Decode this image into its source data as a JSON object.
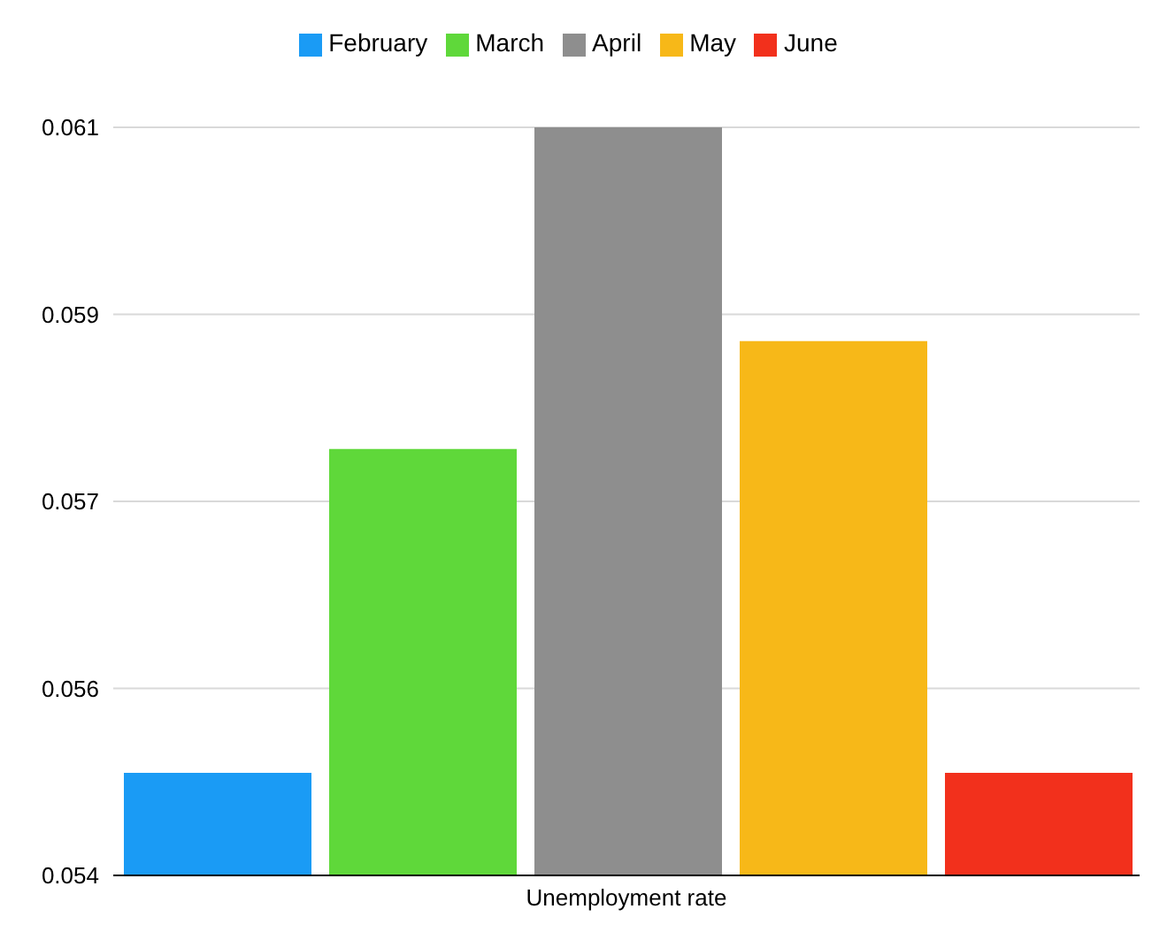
{
  "chart_data": {
    "type": "bar",
    "categories": [
      "Unemployment rate"
    ],
    "series": [
      {
        "name": "February",
        "color": "#1a9bf5",
        "values": [
          0.05496
        ]
      },
      {
        "name": "March",
        "color": "#5fd83a",
        "values": [
          0.05799
        ]
      },
      {
        "name": "April",
        "color": "#8e8e8e",
        "values": [
          0.061
        ]
      },
      {
        "name": "May",
        "color": "#f7b818",
        "values": [
          0.059
        ]
      },
      {
        "name": "June",
        "color": "#f2301c",
        "values": [
          0.05496
        ]
      }
    ],
    "ylim": [
      0.054,
      0.061
    ],
    "yticks": [
      {
        "value": 0.054,
        "label": "0.054"
      },
      {
        "value": 0.05575,
        "label": "0.056"
      },
      {
        "value": 0.0575,
        "label": "0.057"
      },
      {
        "value": 0.05925,
        "label": "0.059"
      },
      {
        "value": 0.061,
        "label": "0.061"
      }
    ],
    "grid": "y",
    "legend": "top"
  }
}
